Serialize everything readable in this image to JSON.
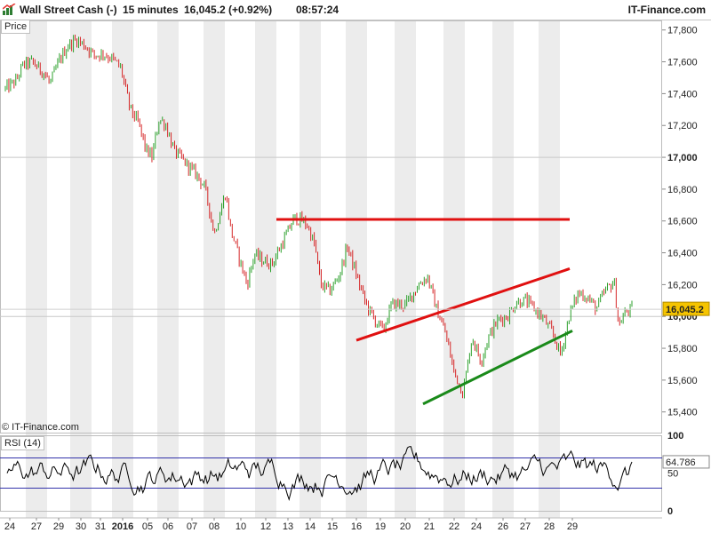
{
  "header": {
    "instrument": "Wall Street Cash (-)",
    "timeframe": "15 minutes",
    "last_price": "16,045.2 (+0.92%)",
    "time": "08:57:24",
    "brand": "IT-Finance.com"
  },
  "price_panel_label": "Price",
  "rsi_panel_label": "RSI (14)",
  "copyright": "© IT-Finance.com",
  "colors": {
    "up": "#2ca02c",
    "down": "#d62728",
    "resistance": "#e01010",
    "support": "#1a8a1a",
    "price_badge": "#f5c400",
    "rsi_line": "#000000",
    "rsi_bands": "#3333aa"
  },
  "chart_data": [
    {
      "type": "candlestick",
      "title": "",
      "x_tick_labels": [
        "24",
        "27",
        "29",
        "30",
        "31",
        "2016",
        "05",
        "06",
        "07",
        "08",
        "10",
        "12",
        "13",
        "14",
        "15",
        "16",
        "19",
        "20",
        "21",
        "22",
        "24",
        "26",
        "27",
        "28",
        "29"
      ],
      "y_tick_labels": [
        "15,400",
        "15,600",
        "15,800",
        "16,000",
        "16,200",
        "16,400",
        "16,600",
        "16,800",
        "17,000",
        "17,200",
        "17,400",
        "17,600",
        "17,800"
      ],
      "y_ticks": [
        15400,
        15600,
        15800,
        16000,
        16200,
        16400,
        16600,
        16800,
        17000,
        17200,
        17400,
        17600,
        17800
      ],
      "ylim": [
        15270,
        17860
      ],
      "last_price": 16045.2,
      "last_price_label": "16,045.2",
      "price_path": [
        [
          0,
          17430
        ],
        [
          1.2,
          17480
        ],
        [
          2,
          17580
        ],
        [
          3,
          17600
        ],
        [
          4.5,
          17520
        ],
        [
          5,
          17460
        ],
        [
          6,
          17600
        ],
        [
          7,
          17700
        ],
        [
          8,
          17740
        ],
        [
          9,
          17700
        ],
        [
          10,
          17640
        ],
        [
          11,
          17650
        ],
        [
          12,
          17620
        ],
        [
          13,
          17560
        ],
        [
          14,
          17310
        ],
        [
          15,
          17210
        ],
        [
          15.8,
          17050
        ],
        [
          16.5,
          17000
        ],
        [
          17.3,
          17240
        ],
        [
          18,
          17210
        ],
        [
          19,
          17040
        ],
        [
          20,
          16980
        ],
        [
          21,
          16920
        ],
        [
          21.7,
          16880
        ],
        [
          22.5,
          16800
        ],
        [
          23.5,
          16520
        ],
        [
          24.8,
          16780
        ],
        [
          25.3,
          16560
        ],
        [
          26.5,
          16330
        ],
        [
          27.2,
          16200
        ],
        [
          28,
          16390
        ],
        [
          29,
          16350
        ],
        [
          30,
          16330
        ],
        [
          31.5,
          16500
        ],
        [
          32.5,
          16620
        ],
        [
          33.5,
          16600
        ],
        [
          34,
          16570
        ],
        [
          34.8,
          16450
        ],
        [
          35.5,
          16200
        ],
        [
          36.5,
          16160
        ],
        [
          37.5,
          16250
        ],
        [
          38.5,
          16440
        ],
        [
          39.5,
          16260
        ],
        [
          40.5,
          16090
        ],
        [
          41.5,
          15980
        ],
        [
          42.5,
          15910
        ],
        [
          43.5,
          16080
        ],
        [
          45,
          16070
        ],
        [
          46.5,
          16200
        ],
        [
          47.5,
          16250
        ],
        [
          48.5,
          16050
        ],
        [
          49.5,
          15900
        ],
        [
          50.5,
          15650
        ],
        [
          51.5,
          15520
        ],
        [
          52.5,
          15870
        ],
        [
          53.5,
          15720
        ],
        [
          54.5,
          15890
        ],
        [
          55.5,
          15980
        ],
        [
          56.5,
          16000
        ],
        [
          57.5,
          16090
        ],
        [
          58.5,
          16100
        ],
        [
          59.5,
          16050
        ],
        [
          60.5,
          15990
        ],
        [
          61.5,
          15900
        ],
        [
          62.5,
          15760
        ],
        [
          63.5,
          16020
        ],
        [
          64.5,
          16150
        ],
        [
          65.5,
          16120
        ],
        [
          66.5,
          16050
        ],
        [
          67.5,
          16160
        ],
        [
          68.5,
          16220
        ],
        [
          69,
          15940
        ],
        [
          69.8,
          16030
        ],
        [
          70.5,
          16045.2
        ]
      ],
      "candles_note": "",
      "x_label_ticks": [
        0.5,
        3.5,
        6,
        8.5,
        10.7,
        13.2,
        16,
        18.3,
        21,
        23.5,
        26.5,
        29.3,
        31.8,
        34.3,
        36.8,
        39.5,
        42.2,
        45,
        47.7,
        50.5,
        53,
        56,
        58.5,
        61.2,
        63.8
      ],
      "trendlines": [
        {
          "color_key": "resistance",
          "from": [
            30.5,
            16610
          ],
          "to": [
            63.5,
            16610
          ]
        },
        {
          "color_key": "resistance",
          "from": [
            39.5,
            15850
          ],
          "to": [
            63.5,
            16300
          ]
        },
        {
          "color_key": "support",
          "from": [
            47,
            15450
          ],
          "to": [
            63.8,
            15910
          ]
        }
      ]
    },
    {
      "type": "line",
      "title": "RSI (14)",
      "y_tick_labels": [
        "0",
        "50",
        "100"
      ],
      "y_ticks": [
        0,
        50,
        100
      ],
      "ylim": [
        0,
        100
      ],
      "bands": [
        30,
        70
      ],
      "last_value": 64.786,
      "last_value_label": "64.786",
      "seed": 7
    }
  ]
}
